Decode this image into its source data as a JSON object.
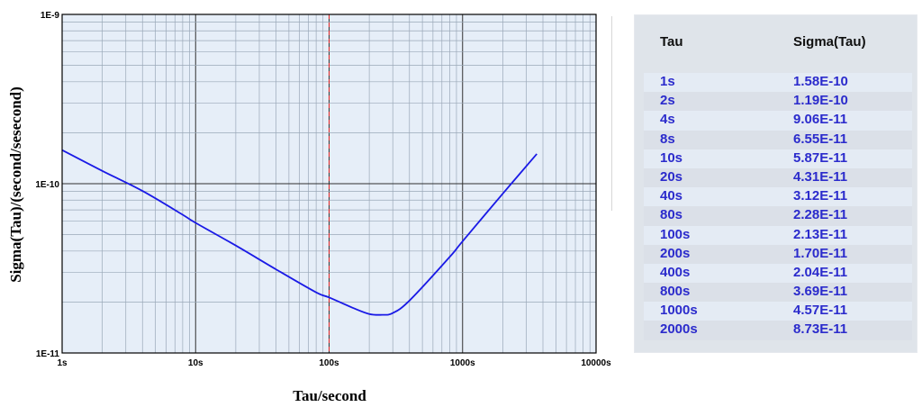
{
  "chart_data": {
    "type": "line",
    "xlabel": "Tau/second",
    "ylabel": "Sigma(Tau)/(second/sesecond)",
    "xscale": "log",
    "yscale": "log",
    "xlim": [
      1,
      10000
    ],
    "ylim": [
      1e-11,
      1e-09
    ],
    "x_tick_labels": [
      "1s",
      "10s",
      "100s",
      "1000s",
      "10000s"
    ],
    "y_tick_labels": [
      "1E-11",
      "1E-10",
      "1E-9"
    ],
    "grid": true,
    "reference_line_x": 100,
    "series": [
      {
        "color": "#1a1ae6",
        "x": [
          1,
          2,
          4,
          8,
          10,
          20,
          40,
          80,
          100,
          150,
          200,
          250,
          300,
          400,
          800,
          1000,
          2000,
          3600
        ],
        "y": [
          1.58e-10,
          1.19e-10,
          9.06e-11,
          6.55e-11,
          5.87e-11,
          4.31e-11,
          3.12e-11,
          2.28e-11,
          2.13e-11,
          1.85e-11,
          1.7e-11,
          1.68e-11,
          1.72e-11,
          2.04e-11,
          3.69e-11,
          4.57e-11,
          8.73e-11,
          1.5e-10
        ]
      }
    ]
  },
  "table": {
    "headers": [
      "Tau",
      "Sigma(Tau)"
    ],
    "rows": [
      [
        "1s",
        "1.58E-10"
      ],
      [
        "2s",
        "1.19E-10"
      ],
      [
        "4s",
        "9.06E-11"
      ],
      [
        "8s",
        "6.55E-11"
      ],
      [
        "10s",
        "5.87E-11"
      ],
      [
        "20s",
        "4.31E-11"
      ],
      [
        "40s",
        "3.12E-11"
      ],
      [
        "80s",
        "2.28E-11"
      ],
      [
        "100s",
        "2.13E-11"
      ],
      [
        "200s",
        "1.70E-11"
      ],
      [
        "400s",
        "2.04E-11"
      ],
      [
        "800s",
        "3.69E-11"
      ],
      [
        "1000s",
        "4.57E-11"
      ],
      [
        "2000s",
        "8.73E-11"
      ]
    ]
  },
  "colors": {
    "plot_bg": "#e6eef8",
    "grid_minor": "#9aa8b8",
    "grid_major": "#303030",
    "curve": "#1a1ae6",
    "ref_line": "#e02020",
    "table_text": "#2b2bcc"
  }
}
